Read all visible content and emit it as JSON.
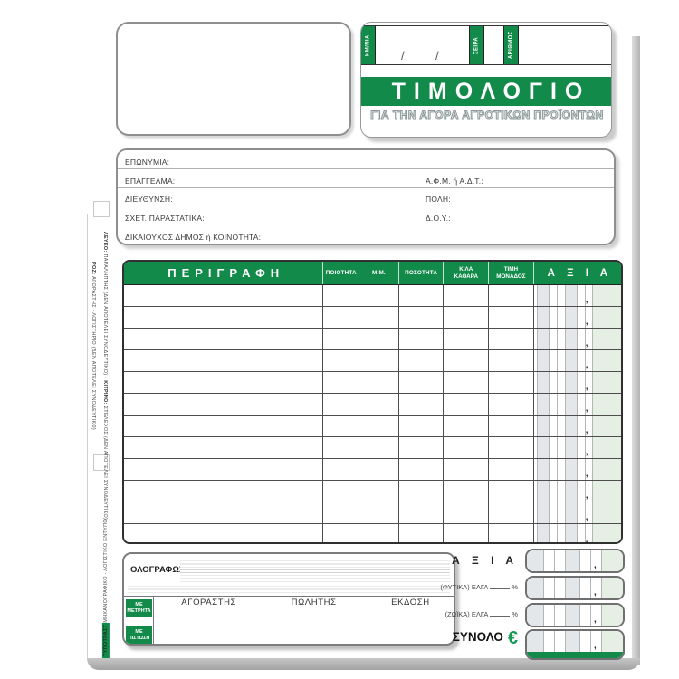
{
  "colors": {
    "green": "#128a49",
    "light_green_stripe": "#e5efe4",
    "light_gray_stripe": "#e4e7e9"
  },
  "header": {
    "tabs": [
      {
        "label": "ΗΜ/ΝΙΑ"
      },
      {
        "label": "ΣΕΙΡΑ"
      },
      {
        "label": "ΑΡΙΘΜΟΣ"
      }
    ],
    "date_separators": [
      "/",
      "/"
    ],
    "title": "ΤΙΜΟΛΟΓΙΟ",
    "subtitle": "ΓΙΑ ΤΗΝ ΑΓΟΡΑ ΑΓΡΟΤΙΚΩΝ ΠΡΟΪΟΝΤΩΝ"
  },
  "info_box": {
    "rows": [
      {
        "left": "ΕΠΩΝΥΜΙΑ:",
        "right": ""
      },
      {
        "left": "ΕΠΑΓΓΕΛΜΑ:",
        "right": "Α.Φ.Μ. ή Α.Δ.Τ.:"
      },
      {
        "left": "ΔΙΕΥΘΥΝΣΗ:",
        "right": "ΠΟΛΗ:"
      },
      {
        "left": "ΣΧΕΤ. ΠΑΡΑΣΤΑΤΙΚΑ:",
        "right": "Δ.Ο.Υ.:"
      },
      {
        "left": "ΔΙΚΑΙΟΥΧΟΣ ΔΗΜΟΣ ή ΚΟΙΝΟΤΗΤΑ:",
        "right": ""
      }
    ]
  },
  "items_table": {
    "headers": [
      "ΠΕΡΙΓΡΑΦΗ",
      "ΠΟΙΟΤΗΤΑ",
      "Μ.Μ.",
      "ΠΟΣΟΤΗΤΑ",
      "ΚΙΛΑ\nΚΑΘΑΡΑ",
      "ΤΙΜΗ\nΜΟΝΑΔΟΣ",
      "Α Ξ Ι Α"
    ],
    "row_count": 12,
    "decimal_comma": ","
  },
  "footer": {
    "amount_in_words_label": "ΟΛΟΓΡΑΦΩΣ",
    "payment_tabs": [
      "ΜΕ\nΜΕΤΡΗΤΑ",
      "ΜΕ\nΠΙΣΤΩΣΗ"
    ],
    "signature_labels": [
      "ΑΓΟΡΑΣΤΗΣ",
      "ΠΩΛΗΤΗΣ",
      "ΕΚΔΟΣΗ"
    ],
    "totals": [
      {
        "label": "Α Ξ Ι Α"
      },
      {
        "label": "(ΦΥΤΙΚΑ) ΕΛΓΑ",
        "suffix": "%"
      },
      {
        "label": "(ΖΩΪΚΑ) ΕΛΓΑ",
        "suffix": "%"
      },
      {
        "label": "ΣΥΝΟΛΟ",
        "currency": "€"
      }
    ],
    "decimal_comma": ","
  },
  "side_notes": {
    "pink_prefix": "ΡΟΖ: ",
    "pink_text": "ΑΓΟΡΑΣΤΗΣ - ΛΟΓΙΣΤΗΡΙΟ (ΔΕΝ ΑΠΟΤΕΛΕΙ ΣΥΝΟΔΕΥΤΙΚΟ)",
    "wy_prefix1": "ΛΕΥΚΟ: ",
    "wy_text1": "ΠΑΡΑΛΗΠΤΗΣ (ΔΕΝ ΑΠΟΤΕΛΕΙ ΣΥΝΟΔΕΥΤΙΚΟ) - ",
    "wy_prefix2": "ΚΙΤΡΙΝΟ: ",
    "wy_text2": "ΣΤΕΛΕΧΟΣ (ΔΕΝ ΑΠΟΤΕΛΕΙ ΣΥΝΟΔΕΥΤΙΚΟ)",
    "bottom_brand": "ΤΥΠΟΤΡΑΣΤ",
    "bottom_text": "ΜΗΧΑΝΟΓΡΑΦΙΚΟ - ΛΟΓΙΣΤΙΚΟ ΕΝΤΥΠΟ"
  }
}
